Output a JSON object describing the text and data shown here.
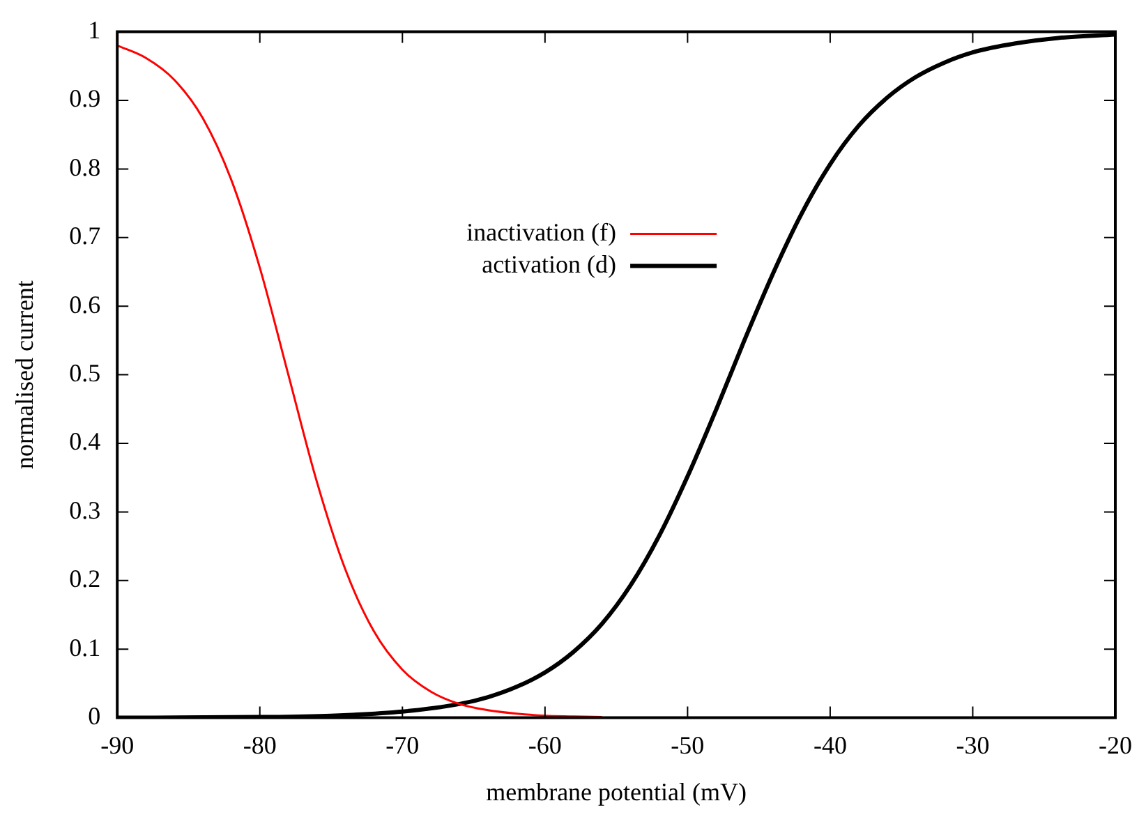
{
  "chart_data": {
    "type": "line",
    "xlabel": "membrane potential (mV)",
    "ylabel": "normalised current",
    "xlim": [
      -90,
      -20
    ],
    "xticks": [
      -90,
      -80,
      -70,
      -60,
      -50,
      -40,
      -30,
      -20
    ],
    "ylim": [
      0,
      1
    ],
    "yticks": [
      0,
      0.1,
      0.2,
      0.3,
      0.4,
      0.5,
      0.6,
      0.7,
      0.8,
      0.9,
      1
    ],
    "grid": false,
    "legend": "top",
    "marker": "none",
    "line_style": "solid",
    "series": [
      {
        "name": "inactivation (f)",
        "color": "#ff0000",
        "x": [
          -90,
          -88,
          -86,
          -84,
          -82,
          -80,
          -78,
          -76,
          -74,
          -72,
          -70,
          -68,
          -66,
          -64,
          -62,
          -60,
          -58,
          -56
        ],
        "values": [
          0.98,
          0.962,
          0.93,
          0.874,
          0.784,
          0.656,
          0.5,
          0.344,
          0.216,
          0.126,
          0.07,
          0.038,
          0.02,
          0.011,
          0.006,
          0.003,
          0.002,
          0.001
        ]
      },
      {
        "name": "activation (d)",
        "color": "#000000",
        "x": [
          -90,
          -80,
          -75,
          -70,
          -66,
          -64,
          -62,
          -60,
          -58,
          -56,
          -54,
          -52,
          -50,
          -48,
          -46,
          -44,
          -42,
          -40,
          -38,
          -36,
          -34,
          -32,
          -30,
          -27,
          -24,
          -20
        ],
        "values": [
          0,
          0.001,
          0.003,
          0.009,
          0.02,
          0.03,
          0.045,
          0.066,
          0.096,
          0.137,
          0.193,
          0.265,
          0.352,
          0.449,
          0.551,
          0.648,
          0.735,
          0.807,
          0.863,
          0.904,
          0.934,
          0.955,
          0.97,
          0.983,
          0.991,
          0.996
        ]
      }
    ]
  }
}
